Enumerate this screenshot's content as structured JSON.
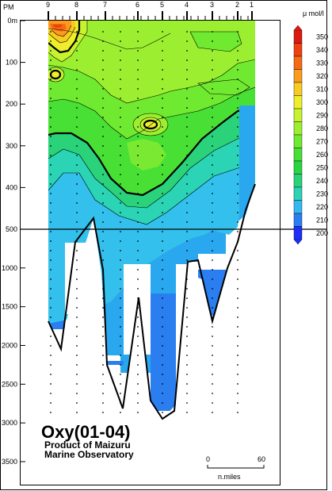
{
  "chart_data": {
    "type": "heatmap",
    "title": "Oxy(01-04)",
    "subtitle_lines": [
      "Product of Maizuru",
      "Marine Observatory"
    ],
    "station_axis_label": "PM",
    "station_labels": [
      "9",
      "8",
      "7",
      "6",
      "5",
      "4",
      "3",
      "2",
      "1"
    ],
    "depth_tick_labels": [
      "0m",
      "100",
      "200",
      "300",
      "400",
      "500",
      "1000",
      "1500",
      "2000",
      "2500",
      "3000",
      "3500"
    ],
    "colorbar_unit": "μ mol/l",
    "colorbar_ticks": [
      350,
      340,
      330,
      320,
      310,
      300,
      290,
      280,
      270,
      260,
      250,
      240,
      230,
      220,
      210,
      200
    ],
    "colorbar_colors": {
      "350": "#dd1a0f",
      "340": "#ee4010",
      "330": "#f66a14",
      "320": "#fb9a1c",
      "310": "#f6cc22",
      "300": "#eeee2a",
      "290": "#c6f22e",
      "280": "#9cef30",
      "270": "#70ea30",
      "260": "#48e034",
      "250": "#2ad63e",
      "240": "#2ad27a",
      "230": "#2ad4b4",
      "220": "#34b8f2",
      "210": "#2a7ef0",
      "200": "#1d2ef5"
    },
    "scale_bar": {
      "start_label": "0",
      "end_label": "60",
      "unit": "n.miles"
    }
  }
}
